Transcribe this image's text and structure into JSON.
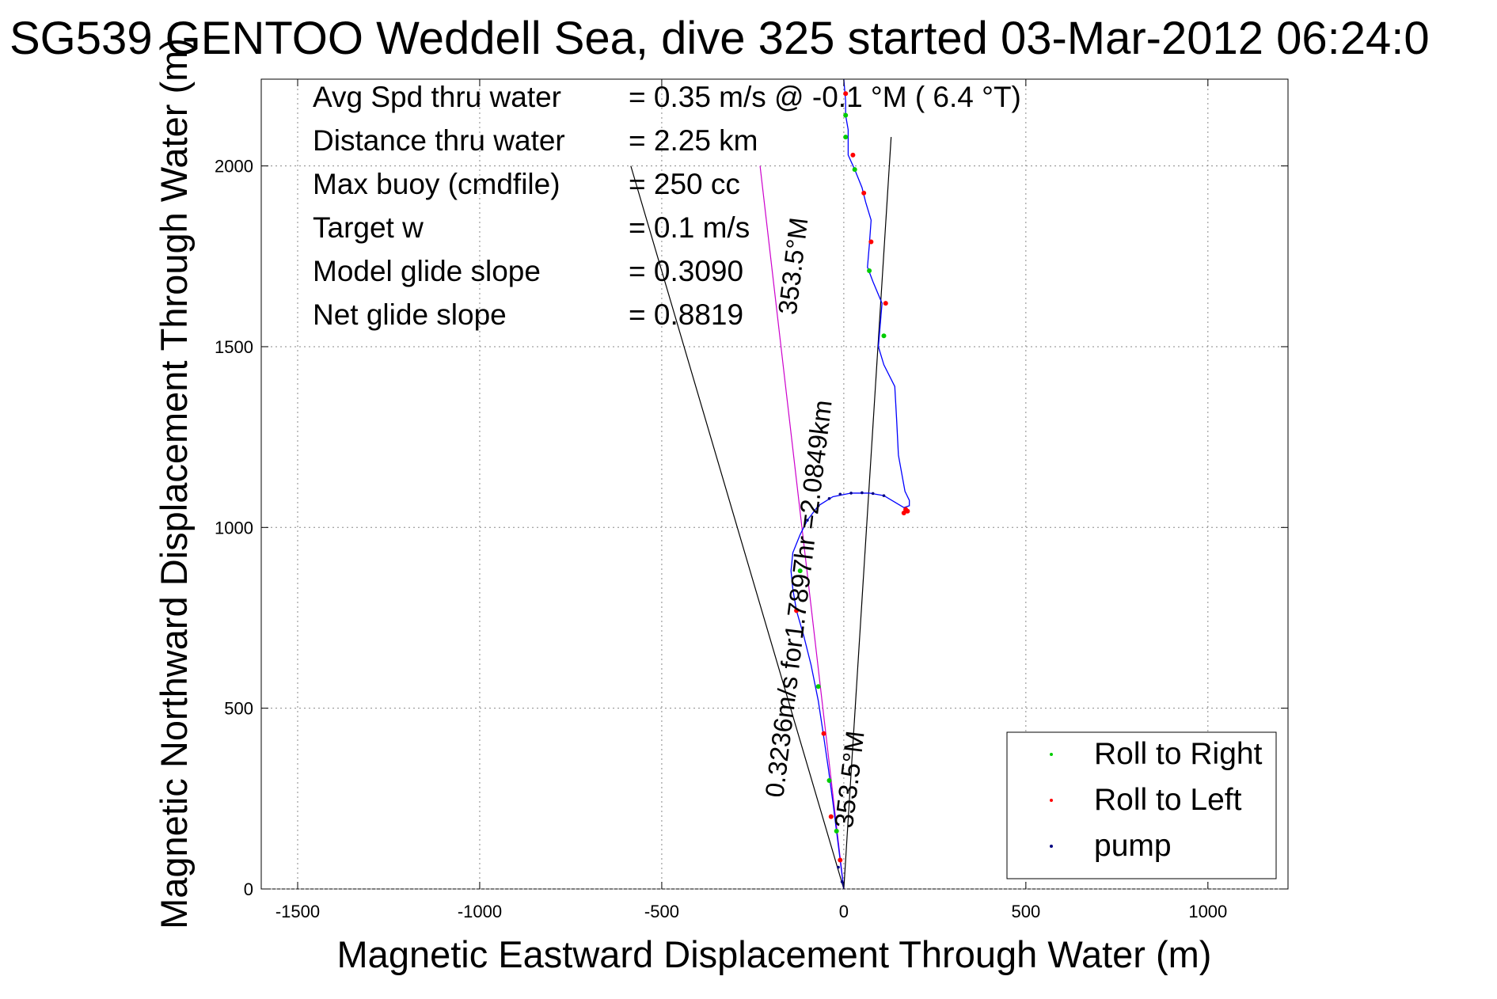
{
  "chart_data": {
    "type": "scatter",
    "title": "SG539 GENTOO Weddell Sea, dive 325 started 03-Mar-2012 06:24:0",
    "xlabel": "Magnetic Eastward Displacement Through Water (m)",
    "ylabel": "Magnetic Northward Displacement Through Water (m)",
    "xlim": [
      -1600,
      1220
    ],
    "ylim": [
      0,
      2240
    ],
    "xticks": [
      -1500,
      -1000,
      -500,
      0,
      500,
      1000
    ],
    "yticks": [
      0,
      500,
      1000,
      1500,
      2000
    ],
    "grid": true,
    "legend_placement": "bottom-right",
    "info_lines": [
      {
        "label": "Avg Spd thru water",
        "value": "=  0.35 m/s @  -0.1 °M (  6.4 °T)"
      },
      {
        "label": "Distance thru water",
        "value": "=  2.25 km"
      },
      {
        "label": "Max buoy (cmdfile)",
        "value": "= 250 cc"
      },
      {
        "label": "Target w",
        "value": "= 0.1 m/s"
      },
      {
        "label": "Model glide slope",
        "value": "= 0.3090"
      },
      {
        "label": "Net glide slope",
        "value": "= 0.8819"
      }
    ],
    "annotations": [
      {
        "text": "353.5°M",
        "x": -115,
        "y": 1720
      },
      {
        "text": "0.3236m/s for1.7897hr =2.0849km",
        "x": -100,
        "y": 800
      },
      {
        "text": "353.5°M",
        "x": 40,
        "y": 300
      }
    ],
    "guide_lines": [
      {
        "name": "wedge-left",
        "color": "#000000",
        "points": [
          [
            0,
            0
          ],
          [
            -585,
            2000
          ]
        ]
      },
      {
        "name": "wedge-right",
        "color": "#000000",
        "points": [
          [
            0,
            0
          ],
          [
            130,
            2080
          ]
        ]
      },
      {
        "name": "heading",
        "color": "#cc00cc",
        "points": [
          [
            0,
            0
          ],
          [
            -230,
            2000
          ]
        ]
      }
    ],
    "track": {
      "name": "track",
      "color": "#0000ff",
      "points": [
        [
          0,
          0
        ],
        [
          -10,
          80
        ],
        [
          -20,
          160
        ],
        [
          -30,
          240
        ],
        [
          -42,
          330
        ],
        [
          -55,
          420
        ],
        [
          -70,
          520
        ],
        [
          -90,
          620
        ],
        [
          -110,
          700
        ],
        [
          -130,
          770
        ],
        [
          -140,
          830
        ],
        [
          -145,
          880
        ],
        [
          -140,
          930
        ],
        [
          -120,
          980
        ],
        [
          -100,
          1020
        ],
        [
          -70,
          1060
        ],
        [
          -30,
          1085
        ],
        [
          20,
          1095
        ],
        [
          70,
          1095
        ],
        [
          110,
          1088
        ],
        [
          140,
          1070
        ],
        [
          165,
          1055
        ],
        [
          180,
          1060
        ],
        [
          180,
          1075
        ],
        [
          168,
          1100
        ],
        [
          150,
          1200
        ],
        [
          145,
          1300
        ],
        [
          140,
          1390
        ],
        [
          110,
          1450
        ],
        [
          95,
          1500
        ],
        [
          100,
          1560
        ],
        [
          105,
          1620
        ],
        [
          80,
          1680
        ],
        [
          65,
          1720
        ],
        [
          70,
          1780
        ],
        [
          75,
          1850
        ],
        [
          60,
          1900
        ],
        [
          50,
          1940
        ],
        [
          30,
          1990
        ],
        [
          12,
          2030
        ],
        [
          12,
          2100
        ],
        [
          5,
          2140
        ],
        [
          5,
          2180
        ],
        [
          0,
          2240
        ]
      ]
    },
    "series": [
      {
        "name": "Roll to Right",
        "color": "#00cc00",
        "points": [
          [
            -20,
            160
          ],
          [
            -40,
            300
          ],
          [
            -70,
            560
          ],
          [
            -120,
            880
          ],
          [
            70,
            1710
          ],
          [
            110,
            1530
          ],
          [
            30,
            1990
          ],
          [
            5,
            2080
          ],
          [
            5,
            2140
          ]
        ]
      },
      {
        "name": "Roll to Left",
        "color": "#ff0000",
        "points": [
          [
            -35,
            200
          ],
          [
            -55,
            430
          ],
          [
            -130,
            770
          ],
          [
            170,
            1050
          ],
          [
            175,
            1045
          ],
          [
            165,
            1040
          ],
          [
            115,
            1620
          ],
          [
            75,
            1790
          ],
          [
            55,
            1925
          ],
          [
            25,
            2030
          ],
          [
            5,
            2200
          ],
          [
            -10,
            80
          ]
        ]
      },
      {
        "name": "pump",
        "color": "#000080",
        "points": [
          [
            -100,
            1020
          ],
          [
            -70,
            1060
          ],
          [
            -40,
            1080
          ],
          [
            -10,
            1092
          ],
          [
            20,
            1095
          ],
          [
            50,
            1096
          ],
          [
            80,
            1094
          ],
          [
            110,
            1088
          ],
          [
            -15,
            60
          ],
          [
            -5,
            20
          ]
        ]
      }
    ]
  }
}
